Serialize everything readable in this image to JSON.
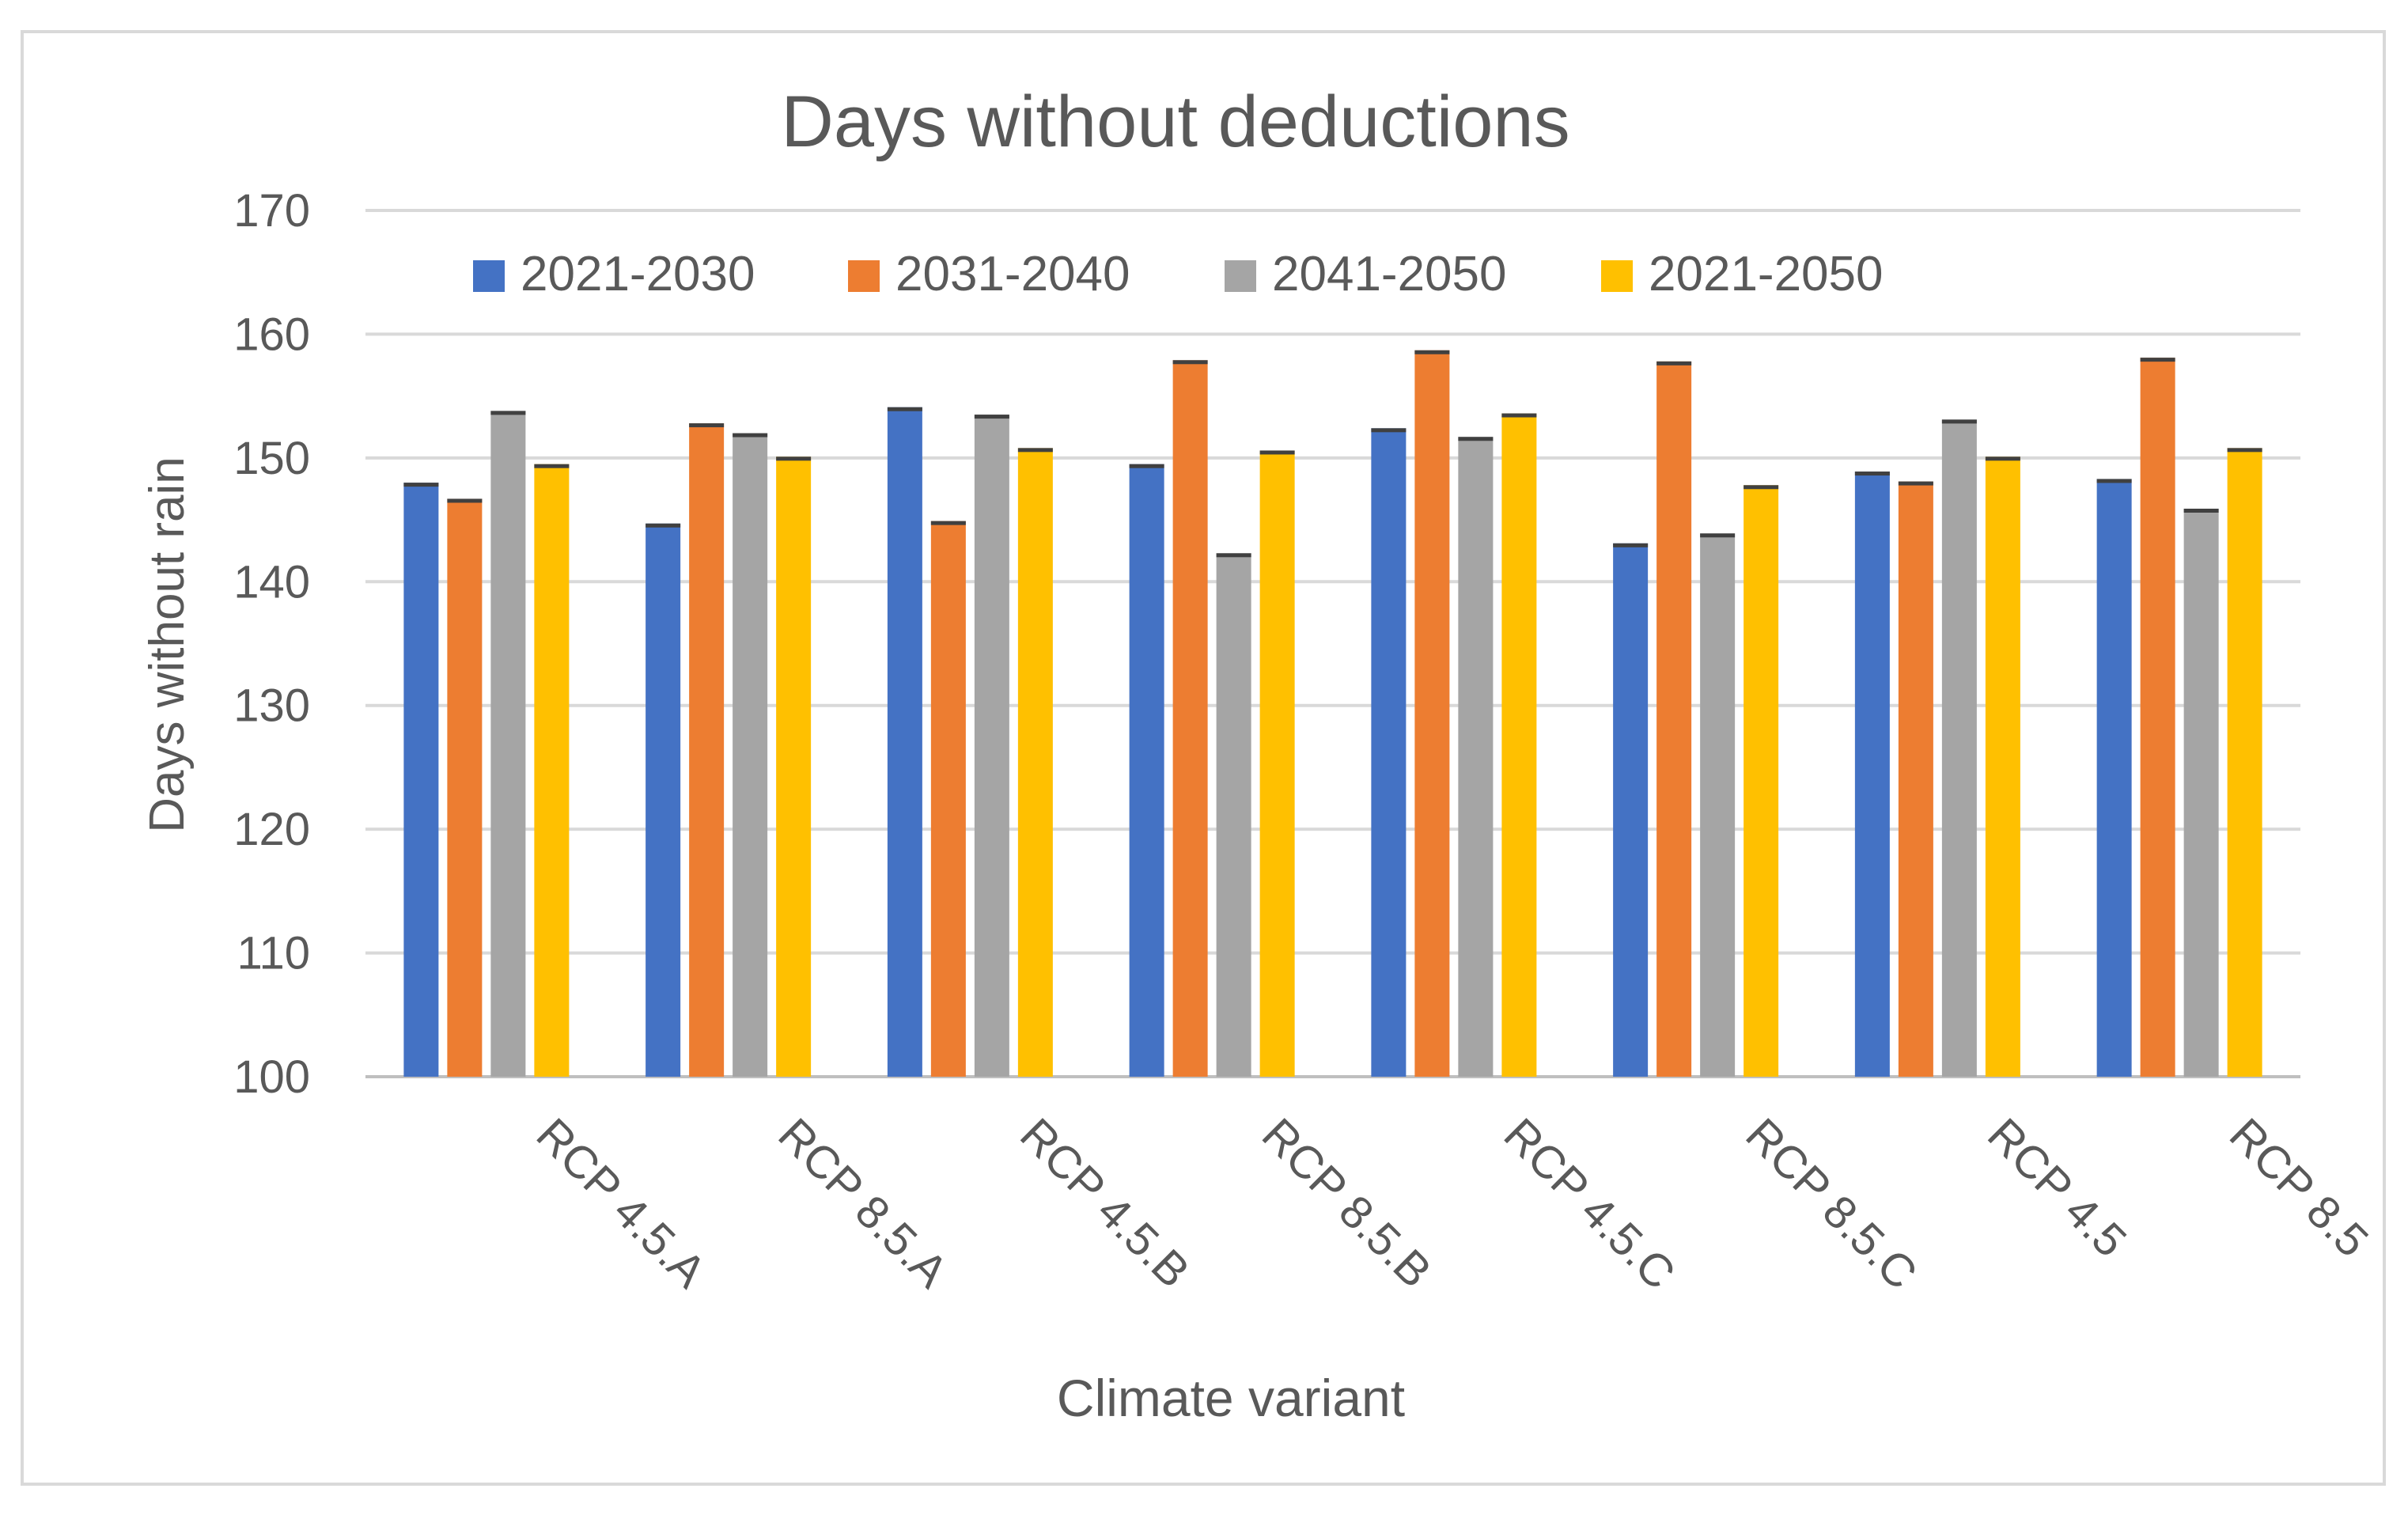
{
  "chart_data": {
    "type": "bar",
    "title": "Days without deductions",
    "xlabel": "Climate variant",
    "ylabel": "Days without rain",
    "ylim": [
      100,
      170
    ],
    "yticks": [
      100,
      110,
      120,
      130,
      140,
      150,
      160,
      170
    ],
    "grid": true,
    "legend_position": "top",
    "categories": [
      "RCP 4.5.A",
      "RCP 8.5.A",
      "RCP 4.5.B",
      "RCP 8.5.B",
      "RCP 4.5.C",
      "RCP 8.5.C",
      "RCP 4.5",
      "RCP 8.5"
    ],
    "series": [
      {
        "name": "2021-2030",
        "color": "#4472c4",
        "values": [
          148,
          144.7,
          154.1,
          149.5,
          152.4,
          143.1,
          148.9,
          148.3
        ]
      },
      {
        "name": "2031-2040",
        "color": "#ed7d31",
        "values": [
          146.7,
          152.8,
          144.9,
          157.9,
          158.7,
          157.8,
          148.1,
          158.1
        ]
      },
      {
        "name": "2041-2050",
        "color": "#a5a5a5",
        "values": [
          153.8,
          152,
          153.5,
          142.3,
          151.7,
          143.9,
          153.1,
          145.9
        ]
      },
      {
        "name": "2021-2050",
        "color": "#ffc000",
        "values": [
          149.5,
          150.1,
          150.8,
          150.6,
          153.6,
          147.8,
          150.1,
          150.8
        ]
      }
    ]
  }
}
